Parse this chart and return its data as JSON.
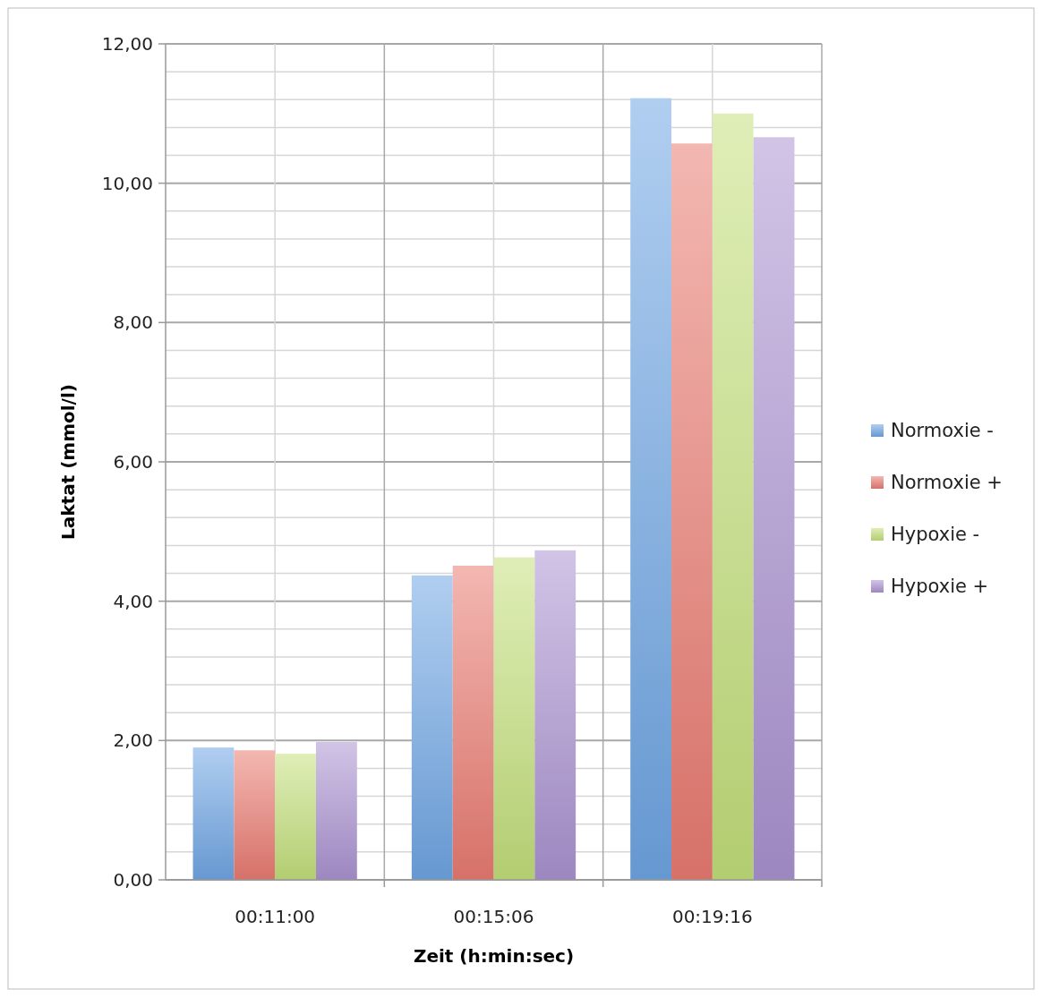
{
  "chart_data": {
    "type": "bar",
    "xlabel": "Zeit (h:min:sec)",
    "ylabel": "Laktat (mmol/l)",
    "categories": [
      "00:11:00",
      "00:15:06",
      "00:19:16"
    ],
    "series": [
      {
        "name": "Normoxie -",
        "color": "#6fa6e4",
        "values": [
          1.9,
          4.37,
          11.22
        ]
      },
      {
        "name": "Normoxie +",
        "color": "#ea7c72",
        "values": [
          1.86,
          4.51,
          10.57
        ]
      },
      {
        "name": "Hypoxie -",
        "color": "#c4e07c",
        "values": [
          1.81,
          4.63,
          11.0
        ]
      },
      {
        "name": "Hypoxie +",
        "color": "#ac94d2",
        "values": [
          1.98,
          4.73,
          10.66
        ]
      }
    ],
    "ylim": [
      0,
      12
    ],
    "yticks": [
      {
        "value": 0,
        "label": "0,00"
      },
      {
        "value": 0.4,
        "label": null
      },
      {
        "value": 0.8,
        "label": null
      },
      {
        "value": 1.2,
        "label": null
      },
      {
        "value": 1.6,
        "label": null
      },
      {
        "value": 2,
        "label": "2,00"
      },
      {
        "value": 2.4,
        "label": null
      },
      {
        "value": 2.8,
        "label": null
      },
      {
        "value": 3.2,
        "label": null
      },
      {
        "value": 3.6,
        "label": null
      },
      {
        "value": 4,
        "label": "4,00"
      },
      {
        "value": 4.4,
        "label": null
      },
      {
        "value": 4.8,
        "label": null
      },
      {
        "value": 5.2,
        "label": null
      },
      {
        "value": 5.6,
        "label": null
      },
      {
        "value": 6,
        "label": "6,00"
      },
      {
        "value": 6.4,
        "label": null
      },
      {
        "value": 6.8,
        "label": null
      },
      {
        "value": 7.2,
        "label": null
      },
      {
        "value": 7.6,
        "label": null
      },
      {
        "value": 8,
        "label": "8,00"
      },
      {
        "value": 8.4,
        "label": null
      },
      {
        "value": 8.8,
        "label": null
      },
      {
        "value": 9.2,
        "label": null
      },
      {
        "value": 9.6,
        "label": null
      },
      {
        "value": 10,
        "label": "10,00"
      },
      {
        "value": 10.4,
        "label": null
      },
      {
        "value": 10.8,
        "label": null
      },
      {
        "value": 11.2,
        "label": null
      },
      {
        "value": 11.6,
        "label": null
      },
      {
        "value": 12,
        "label": "12,00"
      }
    ],
    "grid": true,
    "legend": "right"
  }
}
